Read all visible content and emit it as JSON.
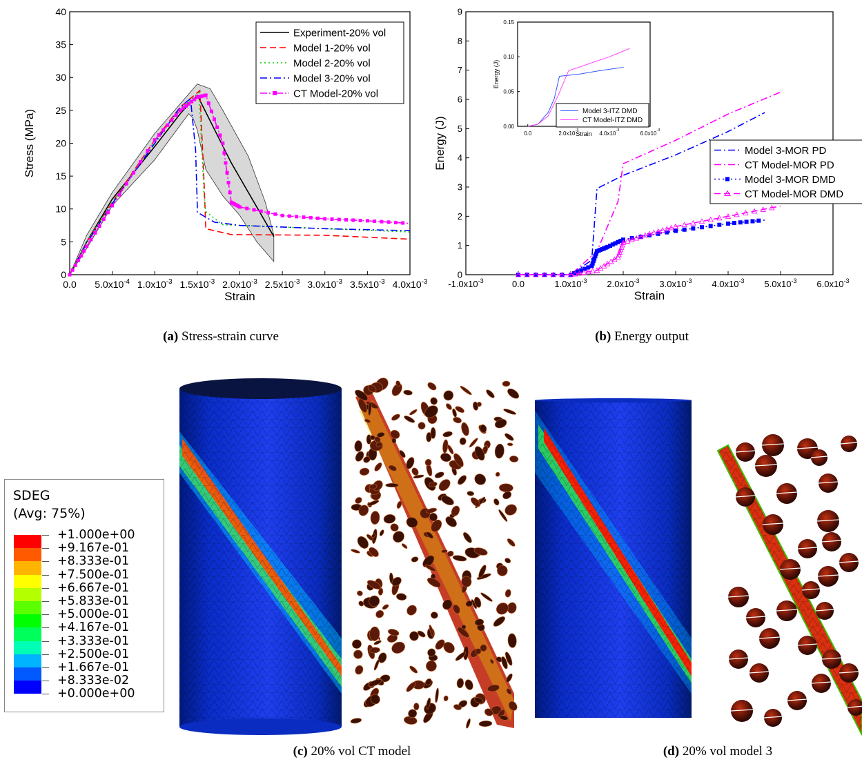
{
  "chart_data": [
    {
      "type": "line",
      "panel": "a",
      "xlabel": "Strain",
      "ylabel": "Stress (MPa)",
      "xlim": [
        0,
        0.004
      ],
      "ylim": [
        0,
        40
      ],
      "xticks": [
        "0.0",
        "5.0x10-4",
        "1.0x10-3",
        "1.5x10-3",
        "2.0x10-3",
        "2.5x10-3",
        "3.0x10-3",
        "3.5x10-3",
        "4.0x10-3"
      ],
      "yticks": [
        "0",
        "5",
        "10",
        "15",
        "20",
        "25",
        "30",
        "35",
        "40"
      ],
      "legend_position": "top-right",
      "band": {
        "upper": [
          [
            0,
            0
          ],
          [
            0.0002,
            6
          ],
          [
            0.0005,
            12.5
          ],
          [
            0.001,
            21.5
          ],
          [
            0.0013,
            26
          ],
          [
            0.0015,
            29
          ],
          [
            0.00165,
            28.3
          ],
          [
            0.0018,
            25
          ],
          [
            0.0021,
            18
          ],
          [
            0.0023,
            11
          ],
          [
            0.0024,
            6
          ]
        ],
        "lower": [
          [
            0,
            0
          ],
          [
            0.0002,
            4
          ],
          [
            0.0005,
            10.5
          ],
          [
            0.001,
            17.5
          ],
          [
            0.0014,
            24.5
          ],
          [
            0.00145,
            23.8
          ],
          [
            0.0015,
            22
          ],
          [
            0.0016,
            16
          ],
          [
            0.0018,
            12
          ],
          [
            0.002,
            9
          ],
          [
            0.0022,
            5
          ],
          [
            0.0024,
            2
          ]
        ]
      },
      "series": [
        {
          "name": "Experiment-20% vol",
          "color": "#000000",
          "dash": "solid",
          "points": [
            [
              0,
              0
            ],
            [
              0.0002,
              5
            ],
            [
              0.0005,
              11.5
            ],
            [
              0.001,
              19.5
            ],
            [
              0.0013,
              24.5
            ],
            [
              0.0015,
              27.3
            ],
            [
              0.0019,
              17
            ],
            [
              0.0024,
              5.8
            ]
          ]
        },
        {
          "name": "Model 1-20% vol",
          "color": "#ff0000",
          "dash": "dashed",
          "points": [
            [
              0,
              0
            ],
            [
              0.0002,
              5
            ],
            [
              0.0005,
              11
            ],
            [
              0.001,
              20.5
            ],
            [
              0.0013,
              25.5
            ],
            [
              0.00153,
              28
            ],
            [
              0.00158,
              14
            ],
            [
              0.0016,
              7
            ],
            [
              0.0019,
              6.1
            ],
            [
              0.003,
              6
            ],
            [
              0.004,
              5.4
            ]
          ]
        },
        {
          "name": "Model 2-20% vol",
          "color": "#00cc00",
          "dash": "dotted",
          "points": [
            [
              0,
              0
            ],
            [
              0.0002,
              5
            ],
            [
              0.0005,
              11
            ],
            [
              0.001,
              20.3
            ],
            [
              0.0013,
              25.2
            ],
            [
              0.00152,
              27.7
            ],
            [
              0.00158,
              12
            ],
            [
              0.0016,
              9.6
            ],
            [
              0.0018,
              7.6
            ],
            [
              0.003,
              7
            ],
            [
              0.004,
              6.5
            ]
          ]
        },
        {
          "name": "Model 3-20% vol",
          "color": "#0000ff",
          "dash": "dashdot",
          "points": [
            [
              0,
              0
            ],
            [
              0.0002,
              4.8
            ],
            [
              0.0005,
              10.8
            ],
            [
              0.001,
              20
            ],
            [
              0.0013,
              25.5
            ],
            [
              0.00142,
              26.8
            ],
            [
              0.00148,
              19
            ],
            [
              0.0015,
              10.5
            ],
            [
              0.0015,
              9.5
            ],
            [
              0.0017,
              8
            ],
            [
              0.002,
              7.5
            ],
            [
              0.003,
              7
            ],
            [
              0.004,
              6.7
            ]
          ]
        },
        {
          "name": "CT Model-20% vol",
          "color": "#ff00ff",
          "dash": "dashdotdot",
          "marker": "square",
          "points": [
            [
              0,
              0
            ],
            [
              0.0002,
              4.3
            ],
            [
              0.0005,
              10.5
            ],
            [
              0.001,
              20.5
            ],
            [
              0.0013,
              25
            ],
            [
              0.0015,
              27
            ],
            [
              0.0016,
              27.3
            ],
            [
              0.0018,
              20
            ],
            [
              0.0019,
              11
            ],
            [
              0.002,
              10.3
            ],
            [
              0.0025,
              9
            ],
            [
              0.003,
              8.5
            ],
            [
              0.0035,
              8.2
            ],
            [
              0.004,
              7.8
            ]
          ]
        }
      ]
    },
    {
      "type": "line",
      "panel": "b",
      "xlabel": "Strain",
      "ylabel": "Energy (J)",
      "xlim": [
        -0.001,
        0.006
      ],
      "ylim": [
        0,
        9
      ],
      "xticks": [
        "-1.0x10-3",
        "0.0",
        "1.0x10-3",
        "2.0x10-3",
        "3.0x10-3",
        "4.0x10-3",
        "5.0x10-3",
        "6.0x10-3"
      ],
      "yticks": [
        "0",
        "1",
        "2",
        "3",
        "4",
        "5",
        "6",
        "7",
        "8",
        "9"
      ],
      "legend_position": "right",
      "series": [
        {
          "name": "Model 3-MOR PD",
          "color": "#0000ff",
          "dash": "dashdot",
          "points": [
            [
              0,
              0
            ],
            [
              0.001,
              0
            ],
            [
              0.0014,
              0.5
            ],
            [
              0.0015,
              2.95
            ],
            [
              0.002,
              3.4
            ],
            [
              0.003,
              4.1
            ],
            [
              0.004,
              4.9
            ],
            [
              0.0047,
              5.55
            ]
          ]
        },
        {
          "name": "CT Model-MOR PD",
          "color": "#ff00ff",
          "dash": "dashdot",
          "points": [
            [
              0,
              0
            ],
            [
              0.001,
              0
            ],
            [
              0.0015,
              0.8
            ],
            [
              0.0019,
              2.5
            ],
            [
              0.002,
              3.8
            ],
            [
              0.003,
              4.6
            ],
            [
              0.004,
              5.5
            ],
            [
              0.005,
              6.25
            ]
          ]
        },
        {
          "name": "Model 3-MOR DMD",
          "color": "#0000ff",
          "dash": "dotted",
          "marker": "square-filled",
          "points": [
            [
              0,
              0
            ],
            [
              0.001,
              0
            ],
            [
              0.0014,
              0.3
            ],
            [
              0.0015,
              0.8
            ],
            [
              0.0017,
              0.95
            ],
            [
              0.002,
              1.2
            ],
            [
              0.003,
              1.5
            ],
            [
              0.004,
              1.75
            ],
            [
              0.0047,
              1.87
            ]
          ]
        },
        {
          "name": "CT Model-MOR DMD",
          "color": "#ff00ff",
          "dash": "dashed",
          "marker": "triangle-open",
          "points": [
            [
              0,
              0
            ],
            [
              0.001,
              0
            ],
            [
              0.0015,
              0.15
            ],
            [
              0.0019,
              0.6
            ],
            [
              0.002,
              1.1
            ],
            [
              0.0025,
              1.4
            ],
            [
              0.003,
              1.65
            ],
            [
              0.004,
              2.0
            ],
            [
              0.005,
              2.35
            ]
          ]
        }
      ]
    },
    {
      "type": "line",
      "panel": "b-inset",
      "xlabel": "Strain",
      "ylabel": "Energy (J)",
      "xlim": [
        -0.0005,
        0.006
      ],
      "ylim": [
        0,
        0.15
      ],
      "xticks": [
        "0.0",
        "2.0x10-3",
        "4.0x10-3",
        "6.0x10-3"
      ],
      "yticks": [
        "0.00",
        "0.05",
        "0.10",
        "0.15"
      ],
      "legend_position": "bottom-center",
      "series": [
        {
          "name": "Model 3-ITZ DMD",
          "color": "#3355ff",
          "points": [
            [
              0,
              0
            ],
            [
              0.0005,
              0.003
            ],
            [
              0.001,
              0.02
            ],
            [
              0.0013,
              0.04
            ],
            [
              0.00155,
              0.072
            ],
            [
              0.0025,
              0.075
            ],
            [
              0.0035,
              0.08
            ],
            [
              0.0047,
              0.085
            ]
          ]
        },
        {
          "name": "CT Model-ITZ DMD",
          "color": "#ff44ff",
          "points": [
            [
              0,
              0
            ],
            [
              0.0005,
              0.003
            ],
            [
              0.001,
              0.015
            ],
            [
              0.0015,
              0.045
            ],
            [
              0.002,
              0.08
            ],
            [
              0.003,
              0.09
            ],
            [
              0.004,
              0.1
            ],
            [
              0.005,
              0.112
            ]
          ]
        }
      ]
    }
  ],
  "captions": {
    "a": {
      "label": "(a)",
      "text": "Stress-strain curve"
    },
    "b": {
      "label": "(b)",
      "text": "Energy output"
    },
    "c": {
      "label": "(c)",
      "text": "20% vol CT model"
    },
    "d": {
      "label": "(d)",
      "text": "20% vol model 3"
    }
  },
  "sdeg_legend": {
    "title": "SDEG",
    "subtitle": "(Avg: 75%)",
    "levels": [
      "+1.000e+00",
      "+9.167e-01",
      "+8.333e-01",
      "+7.500e-01",
      "+6.667e-01",
      "+5.833e-01",
      "+5.000e-01",
      "+4.167e-01",
      "+3.333e-01",
      "+2.500e-01",
      "+1.667e-01",
      "+8.333e-02",
      "+0.000e+00"
    ],
    "colors": [
      "#ff0000",
      "#ff5a00",
      "#ffb400",
      "#ffff00",
      "#b4ff00",
      "#5aff00",
      "#00ff00",
      "#00ff5a",
      "#00ffb4",
      "#00b4ff",
      "#005aff",
      "#0000ff"
    ]
  }
}
